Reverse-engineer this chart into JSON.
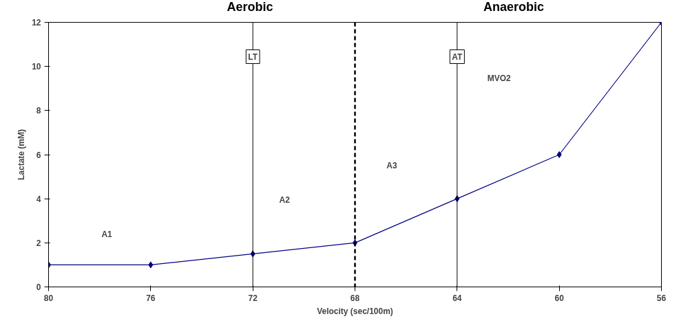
{
  "chart_data": {
    "type": "line",
    "xlabel": "Velocity (sec/100m)",
    "ylabel": "Lactate (mM)",
    "x": [
      80,
      76,
      72,
      68,
      64,
      60,
      56
    ],
    "series": [
      {
        "color": "#000080",
        "values": [
          1,
          1,
          1.5,
          2,
          4,
          6,
          12
        ]
      }
    ],
    "xlim": [
      80,
      56
    ],
    "xticks": [
      80,
      76,
      72,
      68,
      64,
      60,
      56
    ],
    "ylim": [
      0,
      12
    ],
    "yticks": [
      0,
      2,
      4,
      6,
      8,
      10,
      12
    ],
    "marker": "diamond",
    "line_style": "solid",
    "grid": false,
    "ref_lines": [
      {
        "axis": "x",
        "value": 72,
        "label": "LT",
        "color": "#000000",
        "line_style": "solid"
      },
      {
        "axis": "x",
        "value": 68,
        "label": null,
        "color": "#000000",
        "line_style": "dashed"
      },
      {
        "axis": "x",
        "value": 64,
        "label": "AT",
        "color": "#000000",
        "line_style": "solid"
      }
    ],
    "annotations": [
      "Aerobic",
      "Anaerobic",
      "A1",
      "A2",
      "A3",
      "MVO2"
    ]
  }
}
